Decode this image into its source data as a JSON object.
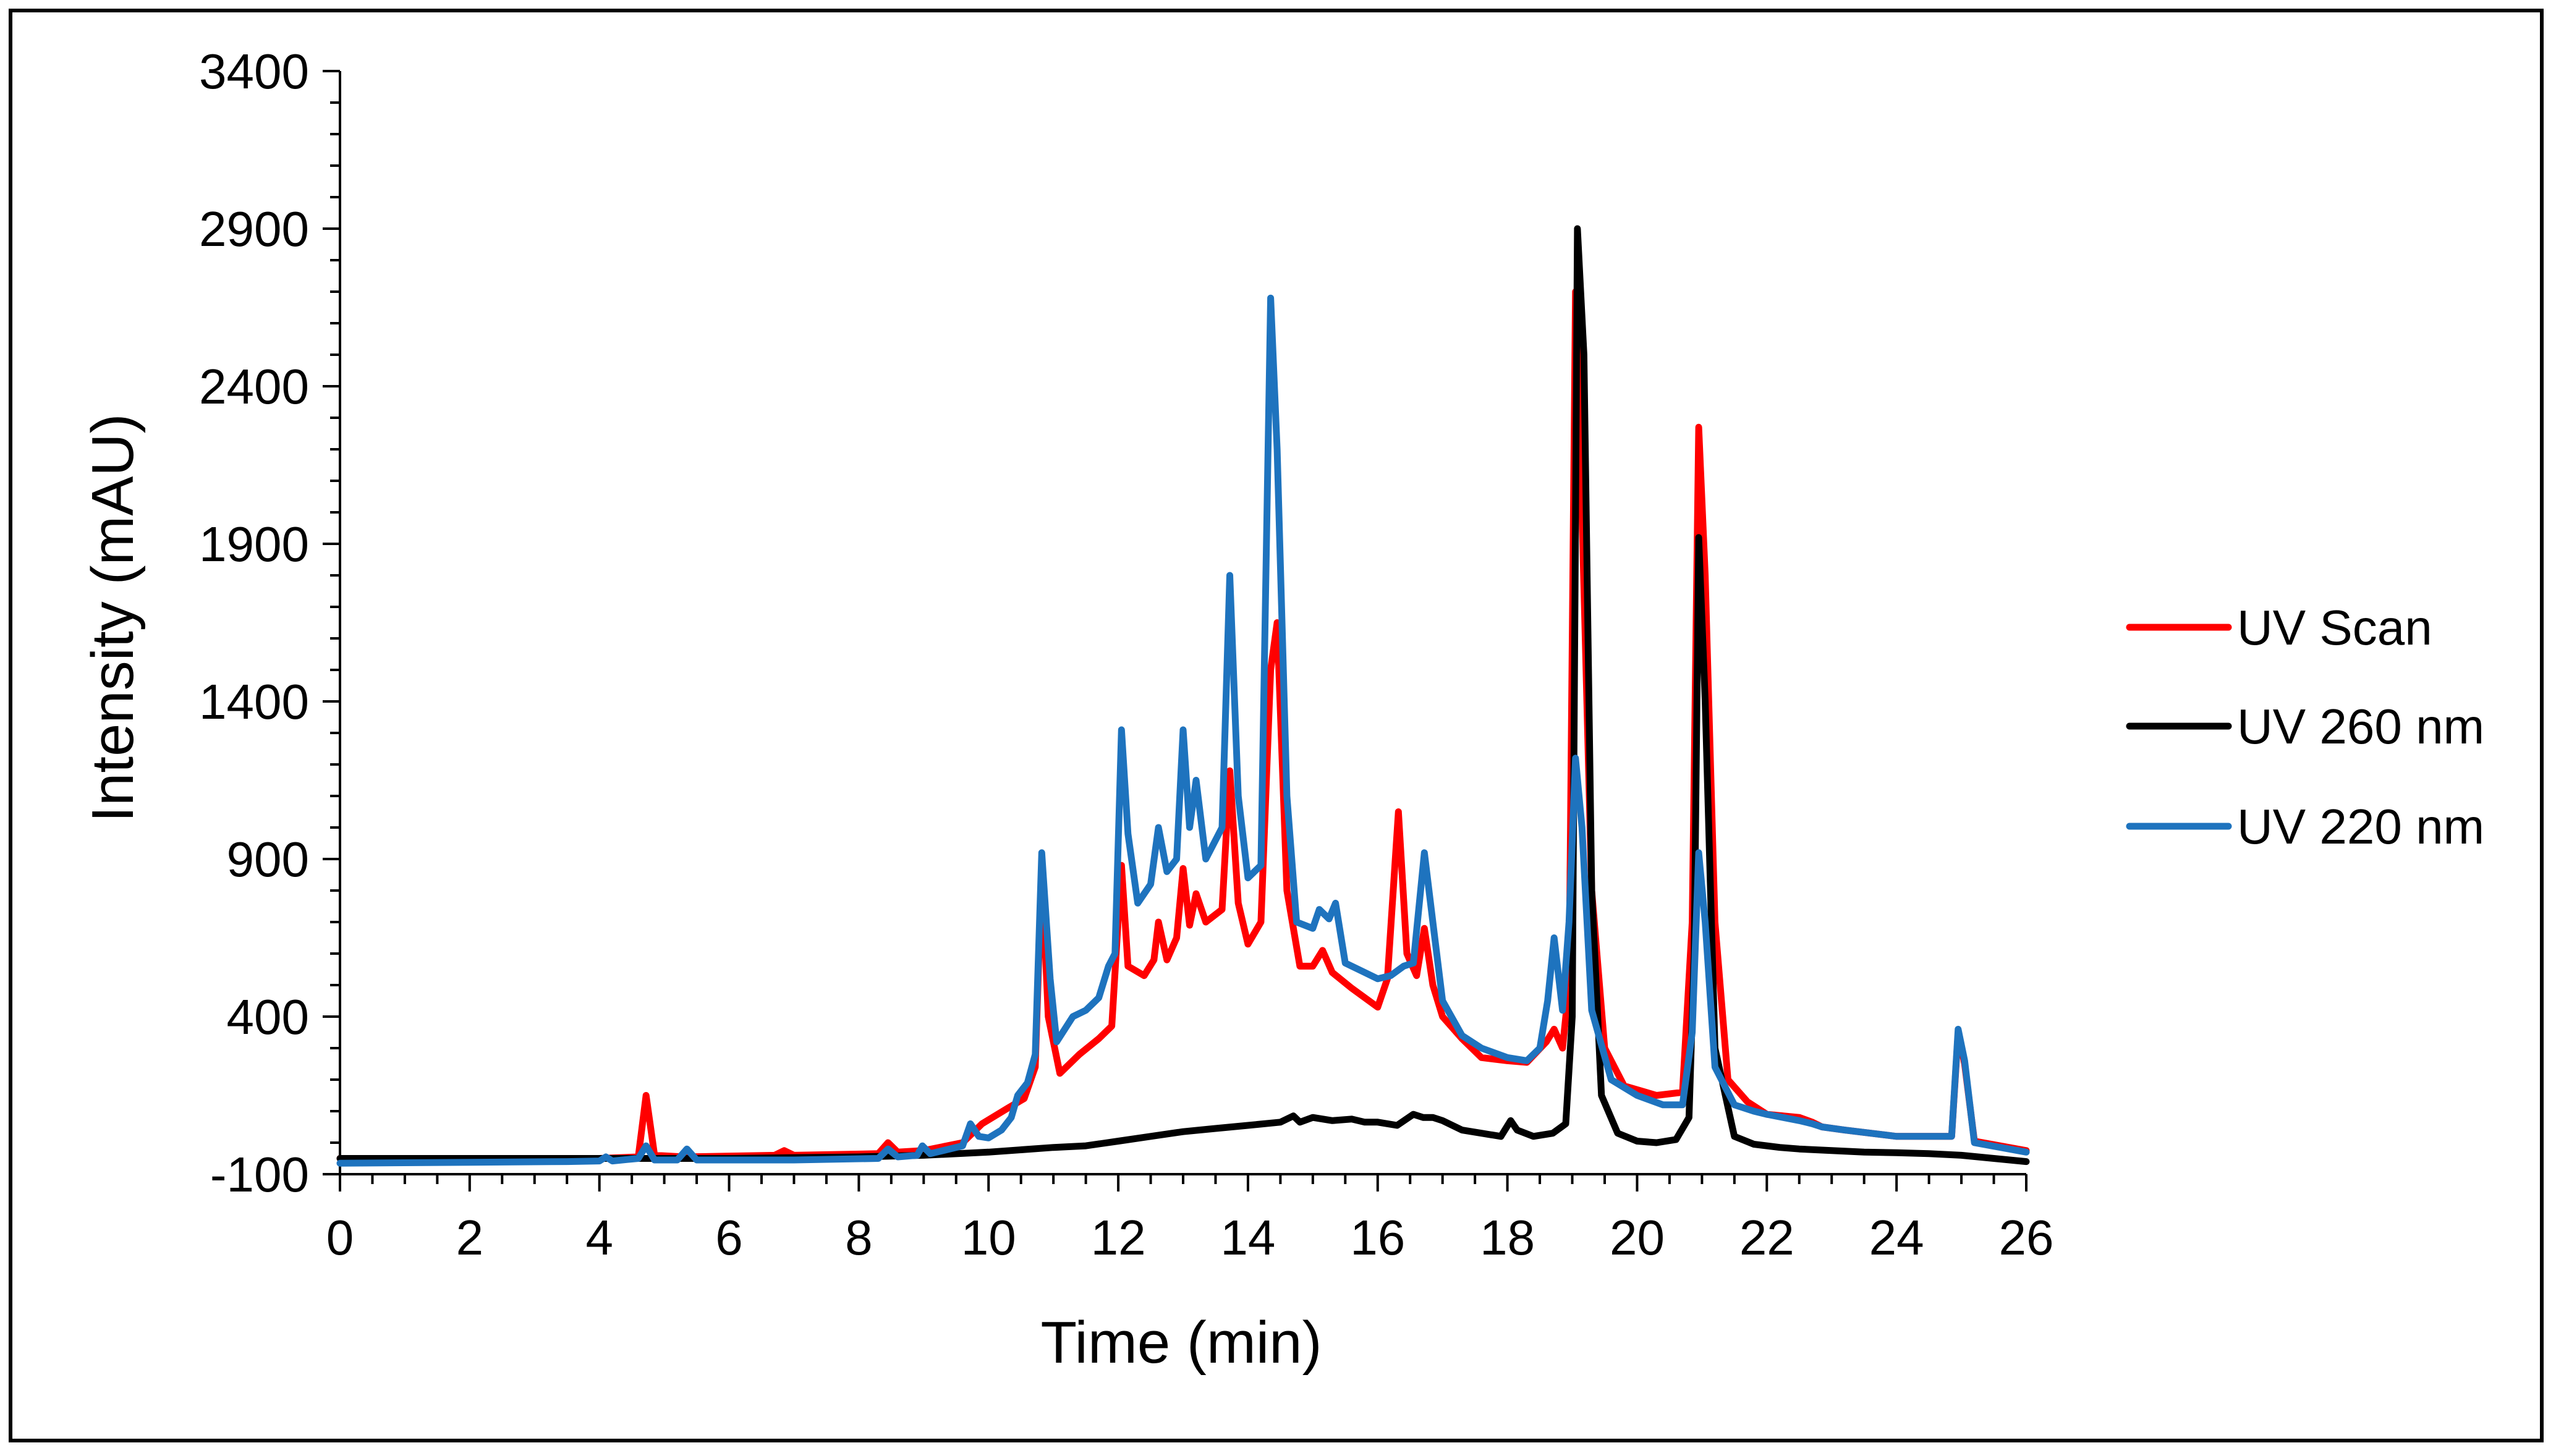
{
  "chart_data": {
    "type": "line",
    "title": "",
    "xlabel": "Time (min)",
    "ylabel": "Intensity (mAU)",
    "xlim": [
      0,
      26
    ],
    "ylim": [
      -100,
      3400
    ],
    "x_ticks": [
      "0",
      "2",
      "4",
      "6",
      "8",
      "10",
      "12",
      "14",
      "16",
      "18",
      "20",
      "22",
      "24",
      "26"
    ],
    "y_ticks": [
      "-100",
      "400",
      "900",
      "1400",
      "1900",
      "2400",
      "2900",
      "3400"
    ],
    "grid": false,
    "legend_position": "right",
    "colors": {
      "uv_scan": "#ff0000",
      "uv_260": "#000000",
      "uv_220": "#1e73be"
    },
    "series": [
      {
        "name": "UV Scan",
        "color": "#ff0000",
        "points": [
          [
            0,
            -50
          ],
          [
            4.0,
            -50
          ],
          [
            4.6,
            -45
          ],
          [
            4.72,
            150
          ],
          [
            4.85,
            -40
          ],
          [
            5.3,
            -45
          ],
          [
            6.7,
            -40
          ],
          [
            6.85,
            -25
          ],
          [
            7.0,
            -40
          ],
          [
            8.3,
            -35
          ],
          [
            8.45,
            0
          ],
          [
            8.6,
            -30
          ],
          [
            9.0,
            -25
          ],
          [
            9.6,
            0
          ],
          [
            9.9,
            60
          ],
          [
            10.3,
            110
          ],
          [
            10.55,
            140
          ],
          [
            10.72,
            240
          ],
          [
            10.82,
            870
          ],
          [
            10.92,
            400
          ],
          [
            11.1,
            220
          ],
          [
            11.4,
            280
          ],
          [
            11.7,
            330
          ],
          [
            11.9,
            370
          ],
          [
            12.05,
            880
          ],
          [
            12.15,
            560
          ],
          [
            12.4,
            530
          ],
          [
            12.55,
            580
          ],
          [
            12.62,
            700
          ],
          [
            12.75,
            580
          ],
          [
            12.9,
            650
          ],
          [
            13.0,
            870
          ],
          [
            13.1,
            690
          ],
          [
            13.2,
            790
          ],
          [
            13.35,
            700
          ],
          [
            13.6,
            740
          ],
          [
            13.72,
            1180
          ],
          [
            13.85,
            760
          ],
          [
            14.0,
            630
          ],
          [
            14.2,
            700
          ],
          [
            14.35,
            1500
          ],
          [
            14.45,
            1650
          ],
          [
            14.6,
            800
          ],
          [
            14.8,
            560
          ],
          [
            15.0,
            560
          ],
          [
            15.15,
            610
          ],
          [
            15.3,
            540
          ],
          [
            15.6,
            490
          ],
          [
            16.0,
            430
          ],
          [
            16.15,
            520
          ],
          [
            16.32,
            1050
          ],
          [
            16.45,
            600
          ],
          [
            16.6,
            530
          ],
          [
            16.72,
            680
          ],
          [
            16.85,
            500
          ],
          [
            17.0,
            400
          ],
          [
            17.3,
            330
          ],
          [
            17.6,
            270
          ],
          [
            18.0,
            260
          ],
          [
            18.3,
            255
          ],
          [
            18.6,
            320
          ],
          [
            18.72,
            360
          ],
          [
            18.85,
            300
          ],
          [
            18.95,
            500
          ],
          [
            19.05,
            2700
          ],
          [
            19.15,
            2000
          ],
          [
            19.3,
            800
          ],
          [
            19.5,
            300
          ],
          [
            19.8,
            180
          ],
          [
            20.3,
            150
          ],
          [
            20.7,
            160
          ],
          [
            20.85,
            700
          ],
          [
            20.95,
            2270
          ],
          [
            21.05,
            1800
          ],
          [
            21.2,
            700
          ],
          [
            21.4,
            200
          ],
          [
            21.7,
            130
          ],
          [
            22.0,
            90
          ],
          [
            22.5,
            80
          ],
          [
            22.7,
            65
          ],
          [
            22.85,
            50
          ],
          [
            23.2,
            40
          ],
          [
            24.0,
            20
          ],
          [
            24.85,
            20
          ],
          [
            24.95,
            350
          ],
          [
            25.05,
            250
          ],
          [
            25.2,
            5
          ],
          [
            26,
            -25
          ]
        ]
      },
      {
        "name": "UV 260 nm",
        "color": "#000000",
        "points": [
          [
            0,
            -50
          ],
          [
            4.0,
            -50
          ],
          [
            6.0,
            -50
          ],
          [
            8.0,
            -45
          ],
          [
            9.0,
            -40
          ],
          [
            10.0,
            -30
          ],
          [
            11.0,
            -15
          ],
          [
            11.5,
            -10
          ],
          [
            12.0,
            5
          ],
          [
            12.5,
            20
          ],
          [
            13.0,
            35
          ],
          [
            13.5,
            45
          ],
          [
            14.0,
            55
          ],
          [
            14.5,
            65
          ],
          [
            14.7,
            85
          ],
          [
            14.8,
            65
          ],
          [
            15.0,
            80
          ],
          [
            15.3,
            70
          ],
          [
            15.6,
            75
          ],
          [
            15.8,
            65
          ],
          [
            16.0,
            65
          ],
          [
            16.3,
            55
          ],
          [
            16.55,
            90
          ],
          [
            16.7,
            80
          ],
          [
            16.85,
            80
          ],
          [
            17.0,
            70
          ],
          [
            17.3,
            40
          ],
          [
            17.6,
            30
          ],
          [
            17.9,
            20
          ],
          [
            18.05,
            70
          ],
          [
            18.15,
            40
          ],
          [
            18.4,
            20
          ],
          [
            18.7,
            30
          ],
          [
            18.9,
            60
          ],
          [
            19.0,
            400
          ],
          [
            19.08,
            2900
          ],
          [
            19.18,
            2500
          ],
          [
            19.3,
            800
          ],
          [
            19.45,
            150
          ],
          [
            19.7,
            30
          ],
          [
            20.0,
            5
          ],
          [
            20.3,
            0
          ],
          [
            20.6,
            10
          ],
          [
            20.8,
            80
          ],
          [
            20.88,
            600
          ],
          [
            20.95,
            1920
          ],
          [
            21.05,
            1400
          ],
          [
            21.2,
            300
          ],
          [
            21.5,
            20
          ],
          [
            21.8,
            -5
          ],
          [
            22.2,
            -15
          ],
          [
            22.5,
            -20
          ],
          [
            23.0,
            -25
          ],
          [
            23.5,
            -30
          ],
          [
            24.0,
            -32
          ],
          [
            24.5,
            -35
          ],
          [
            25.0,
            -40
          ],
          [
            25.5,
            -50
          ],
          [
            26,
            -60
          ]
        ]
      },
      {
        "name": "UV 220 nm",
        "color": "#1e73be",
        "points": [
          [
            0,
            -65
          ],
          [
            3.5,
            -60
          ],
          [
            4.0,
            -58
          ],
          [
            4.1,
            -45
          ],
          [
            4.2,
            -58
          ],
          [
            4.6,
            -50
          ],
          [
            4.72,
            -10
          ],
          [
            4.85,
            -55
          ],
          [
            5.2,
            -55
          ],
          [
            5.35,
            -20
          ],
          [
            5.5,
            -55
          ],
          [
            7.0,
            -55
          ],
          [
            8.3,
            -50
          ],
          [
            8.45,
            -20
          ],
          [
            8.6,
            -45
          ],
          [
            8.9,
            -40
          ],
          [
            8.98,
            -10
          ],
          [
            9.1,
            -35
          ],
          [
            9.6,
            -10
          ],
          [
            9.72,
            60
          ],
          [
            9.85,
            20
          ],
          [
            10.0,
            15
          ],
          [
            10.2,
            40
          ],
          [
            10.35,
            80
          ],
          [
            10.45,
            150
          ],
          [
            10.6,
            190
          ],
          [
            10.72,
            280
          ],
          [
            10.82,
            920
          ],
          [
            10.95,
            520
          ],
          [
            11.05,
            320
          ],
          [
            11.3,
            400
          ],
          [
            11.5,
            420
          ],
          [
            11.7,
            460
          ],
          [
            11.85,
            560
          ],
          [
            11.95,
            600
          ],
          [
            12.05,
            1310
          ],
          [
            12.15,
            980
          ],
          [
            12.3,
            760
          ],
          [
            12.5,
            820
          ],
          [
            12.62,
            1000
          ],
          [
            12.75,
            860
          ],
          [
            12.9,
            900
          ],
          [
            13.0,
            1310
          ],
          [
            13.1,
            1000
          ],
          [
            13.2,
            1150
          ],
          [
            13.35,
            900
          ],
          [
            13.6,
            1000
          ],
          [
            13.72,
            1800
          ],
          [
            13.85,
            1100
          ],
          [
            14.0,
            840
          ],
          [
            14.2,
            880
          ],
          [
            14.35,
            2680
          ],
          [
            14.45,
            2200
          ],
          [
            14.6,
            1100
          ],
          [
            14.75,
            700
          ],
          [
            15.0,
            680
          ],
          [
            15.1,
            740
          ],
          [
            15.25,
            710
          ],
          [
            15.35,
            760
          ],
          [
            15.5,
            570
          ],
          [
            15.8,
            540
          ],
          [
            16.0,
            520
          ],
          [
            16.2,
            530
          ],
          [
            16.4,
            560
          ],
          [
            16.55,
            570
          ],
          [
            16.72,
            920
          ],
          [
            16.85,
            700
          ],
          [
            17.0,
            450
          ],
          [
            17.3,
            340
          ],
          [
            17.6,
            300
          ],
          [
            18.0,
            270
          ],
          [
            18.3,
            260
          ],
          [
            18.5,
            300
          ],
          [
            18.62,
            450
          ],
          [
            18.72,
            650
          ],
          [
            18.85,
            420
          ],
          [
            18.95,
            700
          ],
          [
            19.05,
            1220
          ],
          [
            19.15,
            1000
          ],
          [
            19.3,
            420
          ],
          [
            19.6,
            200
          ],
          [
            20.0,
            150
          ],
          [
            20.4,
            120
          ],
          [
            20.7,
            120
          ],
          [
            20.85,
            350
          ],
          [
            20.95,
            920
          ],
          [
            21.05,
            700
          ],
          [
            21.2,
            240
          ],
          [
            21.5,
            120
          ],
          [
            21.8,
            100
          ],
          [
            22.0,
            90
          ],
          [
            22.5,
            70
          ],
          [
            22.7,
            60
          ],
          [
            22.85,
            50
          ],
          [
            23.2,
            40
          ],
          [
            24.0,
            20
          ],
          [
            24.85,
            20
          ],
          [
            24.95,
            360
          ],
          [
            25.05,
            260
          ],
          [
            25.2,
            0
          ],
          [
            26,
            -30
          ]
        ]
      }
    ]
  }
}
